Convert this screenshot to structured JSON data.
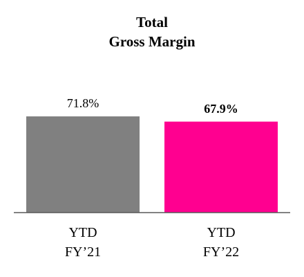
{
  "chart_data": {
    "type": "bar",
    "title": "Total\nGross Margin",
    "categories": [
      "YTD\nFY’21",
      "YTD\nFY’22"
    ],
    "values": [
      71.8,
      67.9
    ],
    "value_labels": [
      "71.8%",
      "67.9%"
    ],
    "value_label_bold": [
      false,
      true
    ],
    "colors": [
      "#808080",
      "#ff0090"
    ]
  }
}
